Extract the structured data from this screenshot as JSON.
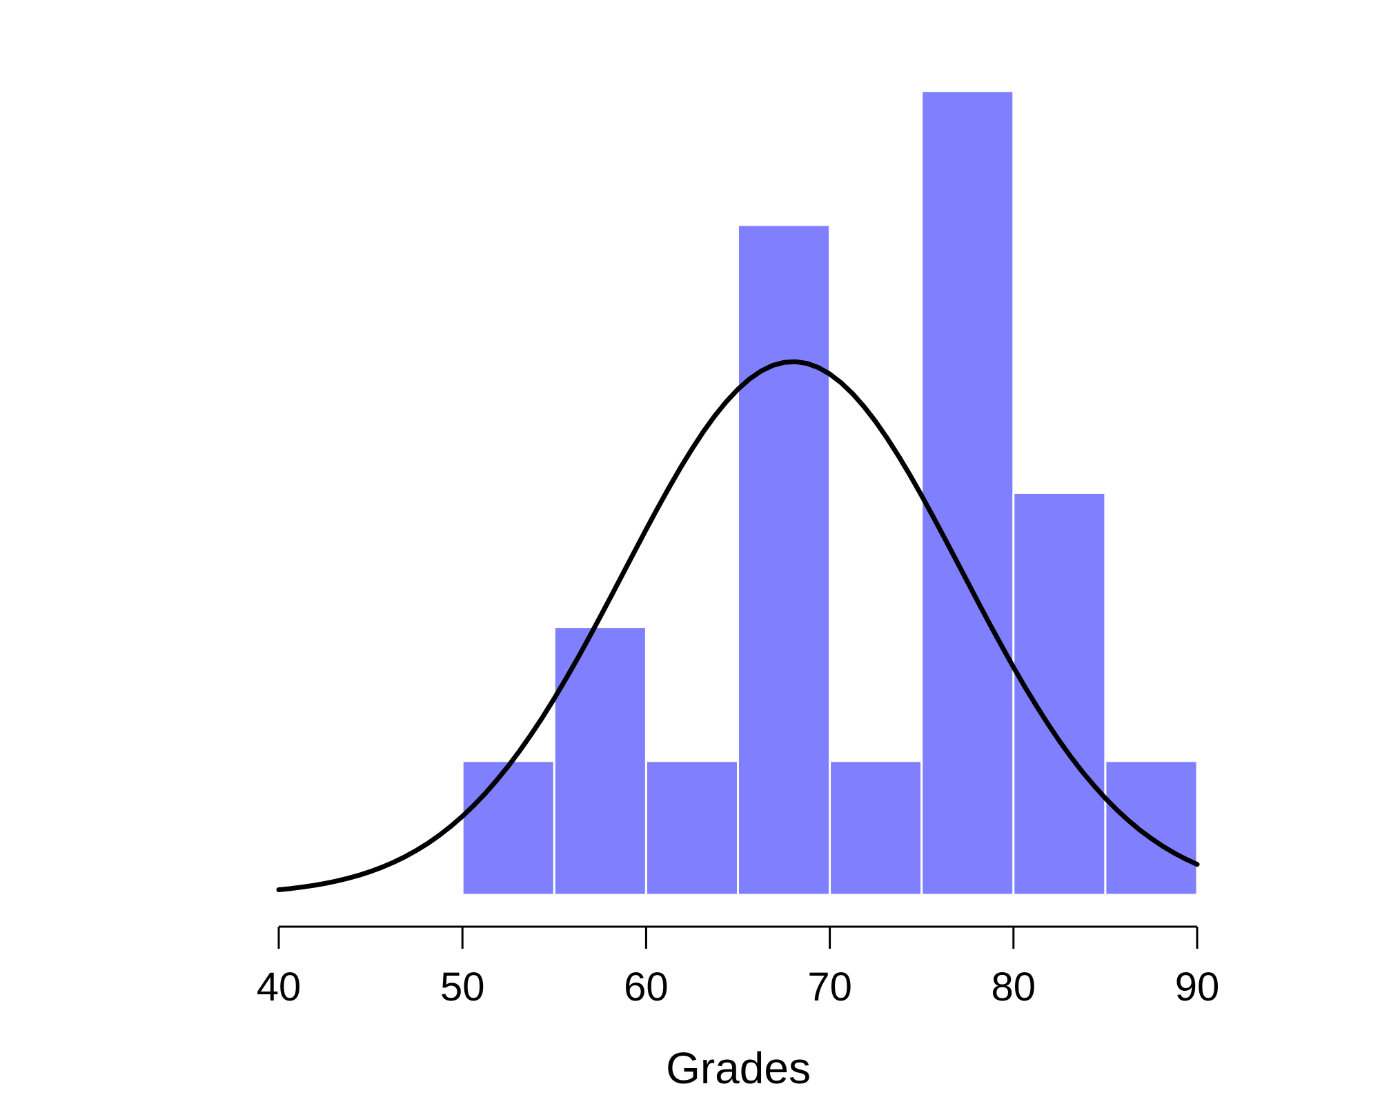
{
  "chart_data": {
    "type": "bar",
    "title": "",
    "xlabel": "Grades",
    "ylabel": "",
    "bins": [
      {
        "start": 50,
        "end": 55,
        "count": 1
      },
      {
        "start": 55,
        "end": 60,
        "count": 2
      },
      {
        "start": 60,
        "end": 65,
        "count": 1
      },
      {
        "start": 65,
        "end": 70,
        "count": 5
      },
      {
        "start": 70,
        "end": 75,
        "count": 1
      },
      {
        "start": 75,
        "end": 80,
        "count": 6
      },
      {
        "start": 80,
        "end": 85,
        "count": 3
      },
      {
        "start": 85,
        "end": 90,
        "count": 1
      }
    ],
    "xlim": [
      40,
      90
    ],
    "x_ticks": [
      "40",
      "50",
      "60",
      "70",
      "80",
      "90"
    ],
    "y_axis_shown": false,
    "grid": false,
    "bar_color": "#8080ff",
    "curve": {
      "type": "normal-density",
      "mean": 68,
      "sd": 9.2,
      "peak_count": 3.98,
      "x_range": [
        40,
        90
      ],
      "color": "#000000"
    }
  }
}
